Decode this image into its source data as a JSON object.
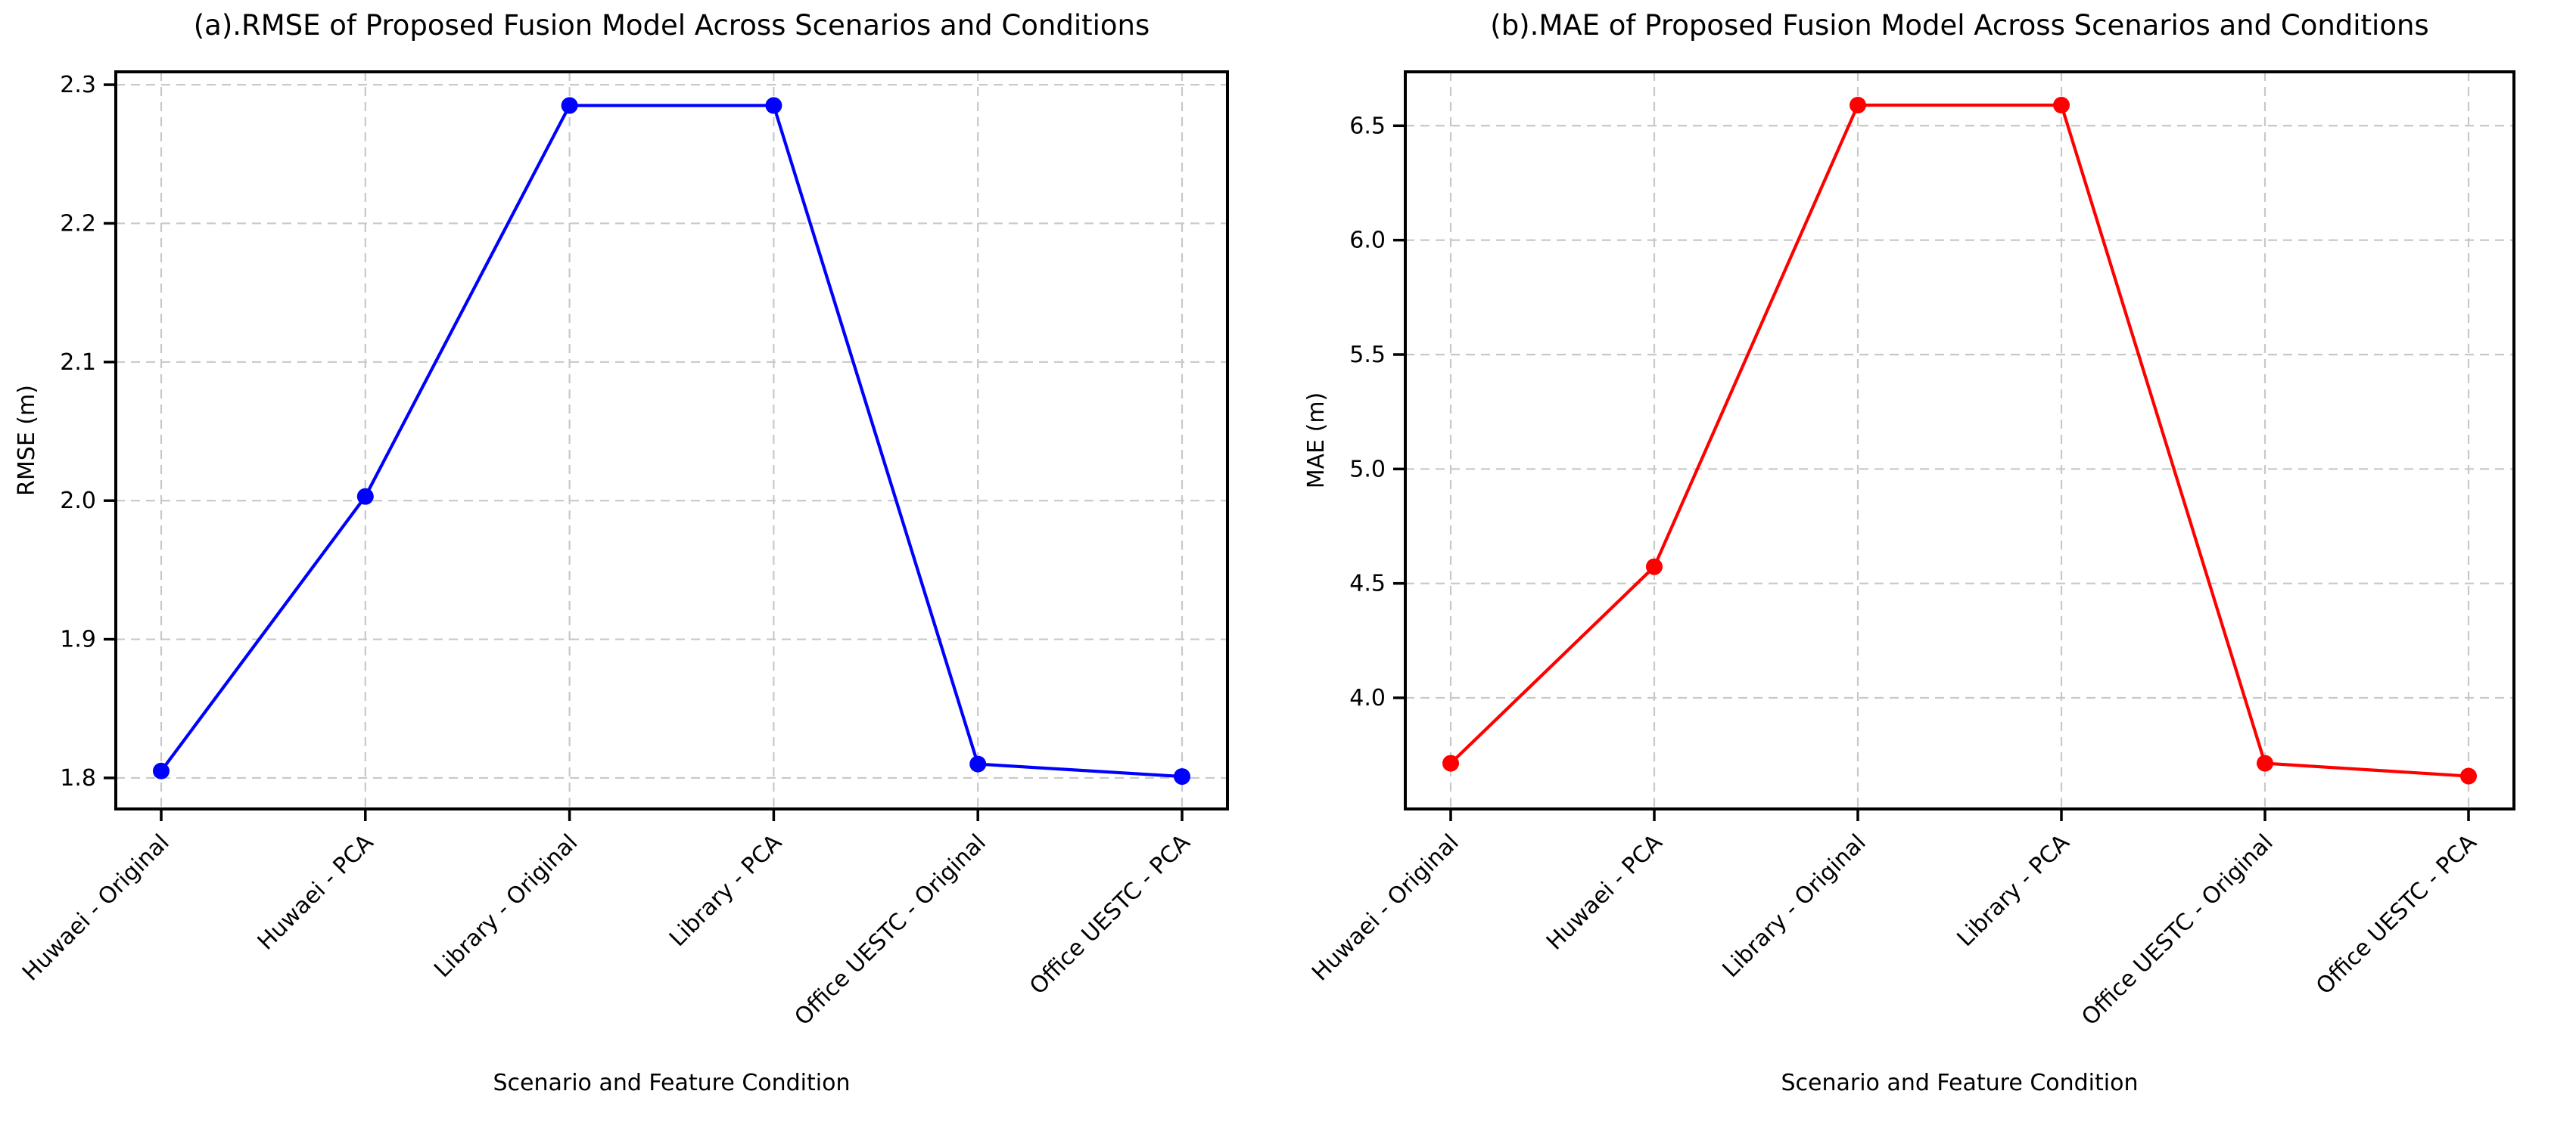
{
  "colors": {
    "grid": "#c8c8c8",
    "axis": "#000000",
    "text": "#000000",
    "rmse_line": "#0000ff",
    "mae_line": "#ff0000",
    "background": "#ffffff"
  },
  "chart_data": [
    {
      "type": "line",
      "title": "(a).RMSE of Proposed Fusion Model Across Scenarios and Conditions",
      "xlabel": "Scenario and Feature Condition",
      "ylabel": "RMSE (m)",
      "categories": [
        "Huwaei - Original",
        "Huwaei - PCA",
        "Library - Original",
        "Library - PCA",
        "Office UESTC - Original",
        "Office UESTC - PCA"
      ],
      "values": [
        1.805,
        2.003,
        2.285,
        2.285,
        1.81,
        1.801
      ],
      "yticks": [
        1.8,
        1.9,
        2.0,
        2.1,
        2.2,
        2.3
      ],
      "ytick_labels": [
        "1.8",
        "1.9",
        "2.0",
        "2.1",
        "2.2",
        "2.3"
      ],
      "ylim": [
        1.7776,
        2.3093
      ],
      "line_color": "#0000ff",
      "marker": "circle",
      "grid": true,
      "grid_style": "dashed",
      "legend": null,
      "x_tick_rotation_deg": 45
    },
    {
      "type": "line",
      "title": "(b).MAE of Proposed Fusion Model Across Scenarios and Conditions",
      "xlabel": "Scenario and Feature Condition",
      "ylabel": "MAE (m)",
      "categories": [
        "Huwaei - Original",
        "Huwaei - PCA",
        "Library - Original",
        "Library - PCA",
        "Office UESTC - Original",
        "Office UESTC - PCA"
      ],
      "values": [
        3.714,
        4.573,
        6.59,
        6.59,
        3.714,
        3.658
      ],
      "yticks": [
        4.0,
        4.5,
        5.0,
        5.5,
        6.0,
        6.5
      ],
      "ytick_labels": [
        "4.0",
        "4.5",
        "5.0",
        "5.5",
        "6.0",
        "6.5"
      ],
      "ylim": [
        3.5144,
        6.7355
      ],
      "line_color": "#ff0000",
      "marker": "circle",
      "grid": true,
      "grid_style": "dashed",
      "legend": null,
      "x_tick_rotation_deg": 45
    }
  ]
}
